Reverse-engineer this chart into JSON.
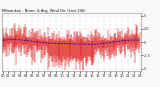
{
  "title": "Milwaukee - Norm. & Avg. Wind Dir. (Last 24h)",
  "background_color": "#f8f8f8",
  "plot_bg_color": "#ffffff",
  "grid_color": "#bbbbbb",
  "bar_color": "#dd0000",
  "line_color": "#0000cc",
  "n_points": 288,
  "ylim": [
    -5.5,
    5.5
  ],
  "yticks": [
    5,
    2.5,
    0,
    -2.5,
    -5
  ],
  "ytick_labels": [
    "5",
    "2.5",
    "0",
    "-2.5",
    "-5"
  ],
  "figsize": [
    1.6,
    0.87
  ],
  "dpi": 100
}
